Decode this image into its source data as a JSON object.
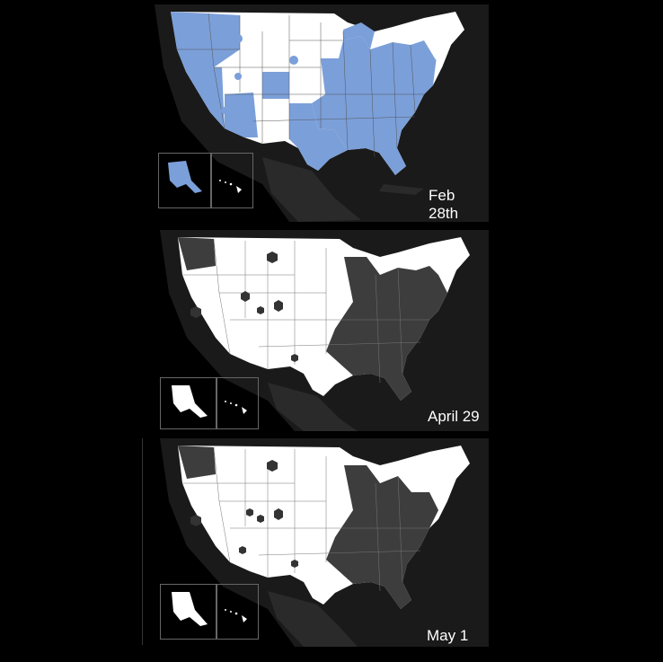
{
  "panels": [
    {
      "id": "feb",
      "caption": "Feb 28th",
      "colors": {
        "land": "#d9d9d9",
        "region_a": "#7b9fd9",
        "region_b": "#ffffff",
        "marker": "#7b9fd9"
      }
    },
    {
      "id": "apr",
      "caption": "April 29",
      "colors": {
        "land": "#3a3a3a",
        "region_a": "#ffffff",
        "region_b": "#3d3d3d",
        "marker": "#333333"
      }
    },
    {
      "id": "may",
      "caption": "May 1",
      "colors": {
        "land": "#3a3a3a",
        "region_a": "#ffffff",
        "region_b": "#3d3d3d",
        "marker": "#333333"
      }
    }
  ],
  "insets": {
    "left_icon": "alaska-icon",
    "right_icon": "hawaii-icon"
  },
  "page_colors": {
    "background": "#000000",
    "border": "#666666"
  }
}
